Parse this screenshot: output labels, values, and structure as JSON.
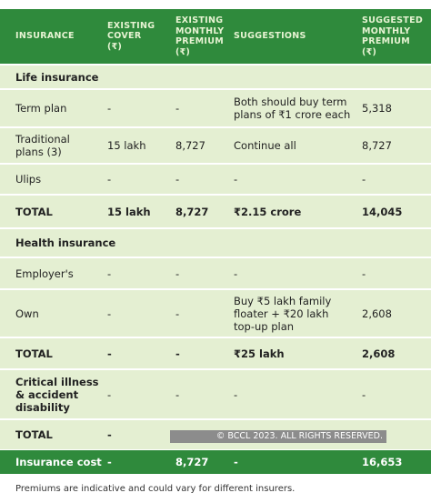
{
  "header": {
    "columns": [
      [
        "INSURANCE"
      ],
      [
        "EXISTING",
        "COVER",
        "(₹)"
      ],
      [
        "EXISTING",
        "MONTHLY",
        "PREMIUM",
        "(₹)"
      ],
      [
        "SUGGESTIONS"
      ],
      [
        "SUGGESTED",
        "MONTHLY",
        "PREMIUM",
        "(₹)"
      ]
    ]
  },
  "sections": [
    {
      "title": [
        "Life insurance"
      ],
      "rows": [
        [
          [
            "Term plan"
          ],
          "-",
          "-",
          [
            "Both should buy term",
            "plans of ₹1 crore each"
          ],
          "5,318"
        ],
        [
          [
            "Traditional",
            "plans (3)"
          ],
          "15 lakh",
          "8,727",
          "Continue all",
          "8,727"
        ],
        [
          [
            "Ulips"
          ],
          "-",
          "-",
          "-",
          "-"
        ]
      ],
      "total": [
        "TOTAL",
        "15 lakh",
        "8,727",
        "₹2.15 crore",
        "14,045"
      ]
    },
    {
      "title": [
        "Health insurance"
      ],
      "rows": [
        [
          [
            "Employer's"
          ],
          "-",
          "-",
          "-",
          "-"
        ],
        [
          [
            "Own"
          ],
          "-",
          "-",
          [
            "Buy ₹5 lakh family",
            "floater + ₹20 lakh",
            "top-up plan"
          ],
          "2,608"
        ]
      ],
      "total": [
        "TOTAL",
        "-",
        "-",
        "₹25 lakh",
        "2,608"
      ]
    },
    {
      "title": [
        "Critical illness",
        "& accident",
        "disability"
      ],
      "cells": [
        "-",
        "-",
        "-",
        "-"
      ],
      "total": [
        "TOTAL",
        "-"
      ]
    }
  ],
  "cost": [
    "Insurance cost",
    "-",
    "8,727",
    "-",
    "16,653"
  ],
  "watermark": "© BCCL 2023. ALL RIGHTS RESERVED.",
  "footnote": "Premiums are indicative and could vary for different insurers."
}
